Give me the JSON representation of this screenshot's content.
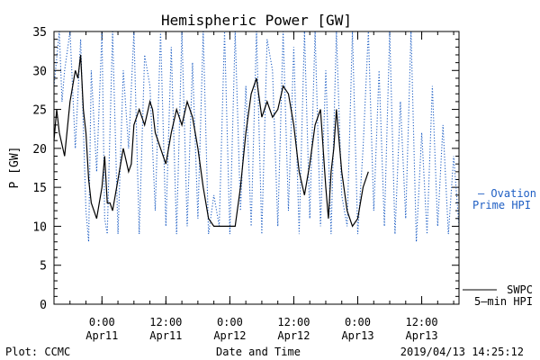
{
  "chart_data": {
    "type": "line",
    "title": "Hemispheric Power [GW]",
    "xlabel": "Date and Time",
    "ylabel": "P [GW]",
    "ylim": [
      0,
      35
    ],
    "yticks": [
      0,
      5,
      10,
      15,
      20,
      25,
      30,
      35
    ],
    "xlim": [
      "2019-04-10T15:00",
      "2019-04-13T19:00"
    ],
    "xticks": [
      {
        "time": "2019-04-11T00:00",
        "line1": "0:00",
        "line2": "Apr11"
      },
      {
        "time": "2019-04-11T12:00",
        "line1": "12:00",
        "line2": "Apr11"
      },
      {
        "time": "2019-04-12T00:00",
        "line1": "0:00",
        "line2": "Apr12"
      },
      {
        "time": "2019-04-12T12:00",
        "line1": "12:00",
        "line2": "Apr12"
      },
      {
        "time": "2019-04-13T00:00",
        "line1": "0:00",
        "line2": "Apr13"
      },
      {
        "time": "2019-04-13T12:00",
        "line1": "12:00",
        "line2": "Apr13"
      }
    ],
    "legend_position": "right",
    "series": [
      {
        "name": "SWPC 5-min HPI",
        "label_line1": "SWPC",
        "label_line2": "5–min HPI",
        "color": "#000000",
        "style": "solid",
        "x": [
          "2019-04-10T15:00",
          "2019-04-10T15:30",
          "2019-04-10T16:00",
          "2019-04-10T17:00",
          "2019-04-10T18:00",
          "2019-04-10T19:00",
          "2019-04-10T19:30",
          "2019-04-10T20:00",
          "2019-04-10T20:30",
          "2019-04-10T21:00",
          "2019-04-10T21:30",
          "2019-04-10T22:00",
          "2019-04-10T23:00",
          "2019-04-10T23:30",
          "2019-04-11T00:00",
          "2019-04-11T00:30",
          "2019-04-11T01:00",
          "2019-04-11T01:30",
          "2019-04-11T02:00",
          "2019-04-11T03:00",
          "2019-04-11T04:00",
          "2019-04-11T05:00",
          "2019-04-11T05:30",
          "2019-04-11T06:00",
          "2019-04-11T07:00",
          "2019-04-11T08:00",
          "2019-04-11T09:00",
          "2019-04-11T09:30",
          "2019-04-11T10:00",
          "2019-04-11T11:00",
          "2019-04-11T12:00",
          "2019-04-11T13:00",
          "2019-04-11T14:00",
          "2019-04-11T15:00",
          "2019-04-11T16:00",
          "2019-04-11T17:00",
          "2019-04-11T18:00",
          "2019-04-11T19:00",
          "2019-04-11T20:00",
          "2019-04-11T21:00",
          "2019-04-11T21:30",
          "2019-04-11T22:00",
          "2019-04-11T23:00",
          "2019-04-12T00:00",
          "2019-04-12T01:00",
          "2019-04-12T02:00",
          "2019-04-12T03:00",
          "2019-04-12T04:00",
          "2019-04-12T05:00",
          "2019-04-12T06:00",
          "2019-04-12T07:00",
          "2019-04-12T08:00",
          "2019-04-12T09:00",
          "2019-04-12T10:00",
          "2019-04-12T11:00",
          "2019-04-12T12:00",
          "2019-04-12T13:00",
          "2019-04-12T14:00",
          "2019-04-12T15:00",
          "2019-04-12T16:00",
          "2019-04-12T17:00",
          "2019-04-12T18:00",
          "2019-04-12T18:30",
          "2019-04-12T19:00",
          "2019-04-12T19:30",
          "2019-04-12T20:00",
          "2019-04-12T21:00",
          "2019-04-12T22:00",
          "2019-04-12T23:00",
          "2019-04-13T00:00",
          "2019-04-13T01:00",
          "2019-04-13T02:00"
        ],
        "y": [
          21,
          25,
          22,
          19,
          26,
          30,
          29,
          32,
          25,
          22,
          16,
          13,
          11,
          13,
          15,
          19,
          13,
          13,
          12,
          16,
          20,
          17,
          18,
          23,
          25,
          23,
          26,
          25,
          22,
          20,
          18,
          22,
          25,
          23,
          26,
          24,
          20,
          15,
          11,
          10,
          10,
          10,
          10,
          10,
          10,
          15,
          22,
          27,
          29,
          24,
          26,
          24,
          25,
          28,
          27,
          23,
          17,
          14,
          18,
          23,
          25,
          15,
          11,
          17,
          20,
          25,
          17,
          12,
          10,
          11,
          15,
          17
        ]
      },
      {
        "name": "Ovation Prime HPI",
        "label_line1": "— Ovation",
        "label_line2": "Prime HPI",
        "color": "#1f5fc4",
        "style": "dotted",
        "x": [
          "2019-04-10T15:00",
          "2019-04-10T16:00",
          "2019-04-10T16:30",
          "2019-04-10T17:00",
          "2019-04-10T18:00",
          "2019-04-10T19:00",
          "2019-04-10T20:00",
          "2019-04-10T21:00",
          "2019-04-10T21:30",
          "2019-04-10T22:00",
          "2019-04-10T23:00",
          "2019-04-11T00:00",
          "2019-04-11T00:30",
          "2019-04-11T01:00",
          "2019-04-11T02:00",
          "2019-04-11T03:00",
          "2019-04-11T04:00",
          "2019-04-11T05:00",
          "2019-04-11T06:00",
          "2019-04-11T07:00",
          "2019-04-11T08:00",
          "2019-04-11T09:00",
          "2019-04-11T10:00",
          "2019-04-11T11:00",
          "2019-04-11T12:00",
          "2019-04-11T13:00",
          "2019-04-11T14:00",
          "2019-04-11T15:00",
          "2019-04-11T16:00",
          "2019-04-11T17:00",
          "2019-04-11T18:00",
          "2019-04-11T19:00",
          "2019-04-11T20:00",
          "2019-04-11T21:00",
          "2019-04-11T22:00",
          "2019-04-11T23:00",
          "2019-04-12T00:00",
          "2019-04-12T01:00",
          "2019-04-12T02:00",
          "2019-04-12T03:00",
          "2019-04-12T04:00",
          "2019-04-12T05:00",
          "2019-04-12T06:00",
          "2019-04-12T07:00",
          "2019-04-12T08:00",
          "2019-04-12T09:00",
          "2019-04-12T10:00",
          "2019-04-12T11:00",
          "2019-04-12T12:00",
          "2019-04-12T13:00",
          "2019-04-12T14:00",
          "2019-04-12T15:00",
          "2019-04-12T16:00",
          "2019-04-12T17:00",
          "2019-04-12T18:00",
          "2019-04-12T19:00",
          "2019-04-12T20:00",
          "2019-04-12T21:00",
          "2019-04-12T22:00",
          "2019-04-12T23:00",
          "2019-04-13T00:00",
          "2019-04-13T01:00",
          "2019-04-13T02:00",
          "2019-04-13T03:00",
          "2019-04-13T04:00",
          "2019-04-13T05:00",
          "2019-04-13T06:00",
          "2019-04-13T07:00",
          "2019-04-13T08:00",
          "2019-04-13T09:00",
          "2019-04-13T10:00",
          "2019-04-13T11:00",
          "2019-04-13T12:00",
          "2019-04-13T13:00",
          "2019-04-13T14:00",
          "2019-04-13T15:00",
          "2019-04-13T16:00",
          "2019-04-13T17:00",
          "2019-04-13T18:00",
          "2019-04-13T19:00"
        ],
        "y": [
          28,
          35,
          26,
          30,
          35,
          20,
          34,
          12,
          8,
          30,
          17,
          35,
          11,
          9,
          35,
          9,
          30,
          20,
          35,
          9,
          32,
          28,
          12,
          35,
          10,
          33,
          9,
          35,
          10,
          31,
          11,
          35,
          9,
          14,
          10,
          35,
          9,
          35,
          12,
          28,
          10,
          35,
          9,
          34,
          30,
          10,
          35,
          12,
          33,
          9,
          35,
          11,
          35,
          10,
          30,
          9,
          35,
          14,
          10,
          35,
          9,
          20,
          35,
          12,
          30,
          10,
          35,
          9,
          26,
          11,
          35,
          8,
          22,
          9,
          28,
          10,
          23,
          9,
          19,
          10
        ]
      }
    ]
  },
  "footer": {
    "left": "Plot: CCMC",
    "right": "2019/04/13 14:25:12"
  }
}
